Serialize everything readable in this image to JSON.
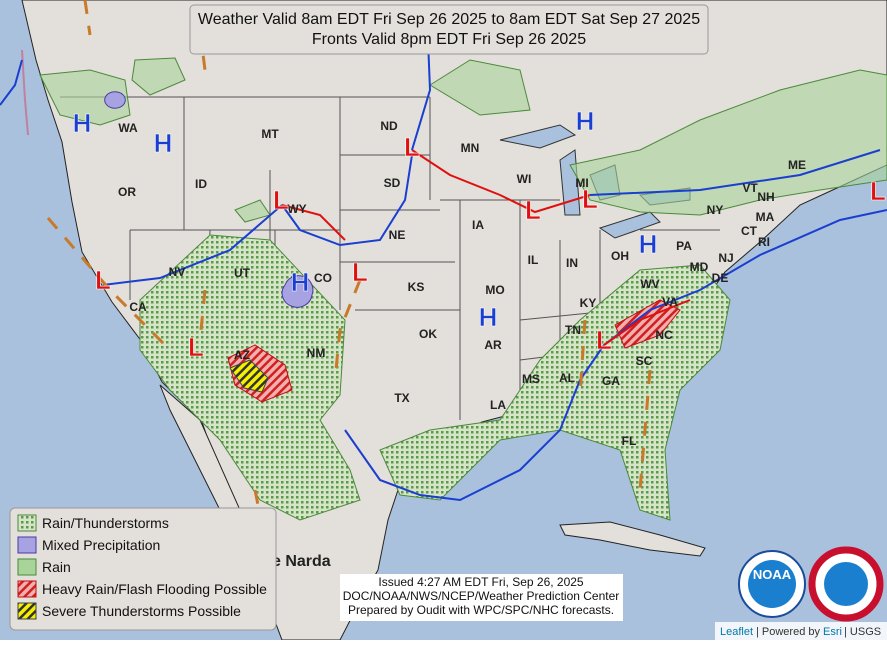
{
  "header": {
    "lines": [
      "Weather Valid 8am EDT Fri Sep 26 2025 to 8am EDT Sat Sep 27 2025",
      "Fronts Valid 8pm EDT Fri Sep 26 2025"
    ]
  },
  "states": [
    "WA",
    "OR",
    "ID",
    "MT",
    "WY",
    "ND",
    "SD",
    "NE",
    "MN",
    "WI",
    "MI",
    "IA",
    "IL",
    "IN",
    "OH",
    "PA",
    "NY",
    "VT",
    "NH",
    "ME",
    "MA",
    "CT",
    "RI",
    "NJ",
    "MD",
    "DE",
    "VA",
    "WV",
    "KY",
    "TN",
    "NC",
    "SC",
    "GA",
    "AL",
    "MS",
    "LA",
    "AR",
    "MO",
    "KS",
    "OK",
    "TX",
    "NM",
    "AZ",
    "UT",
    "NV",
    "CA",
    "CO",
    "FL"
  ],
  "highs": [
    "H",
    "H",
    "H",
    "H",
    "H",
    "H"
  ],
  "lows": [
    "L",
    "L",
    "L",
    "L",
    "L",
    "L",
    "L",
    "L",
    "L"
  ],
  "storm_label": "e Narda",
  "legend": {
    "items": [
      "Rain/Thunderstorms",
      "Mixed Precipitation",
      "Rain",
      "Heavy Rain/Flash Flooding Possible",
      "Severe Thunderstorms Possible"
    ]
  },
  "issued": {
    "lines": [
      "Issued  4:27 AM EDT  Fri, Sep 26, 2025",
      "DOC/NOAA/NWS/NCEP/Weather Prediction Center",
      "Prepared by Oudit with WPC/SPC/NHC forecasts."
    ]
  },
  "logo": {
    "noaa": "NOAA"
  },
  "attribution": {
    "parts": [
      "Leaflet",
      "| Powered by",
      "Esri",
      "| USGS"
    ]
  }
}
